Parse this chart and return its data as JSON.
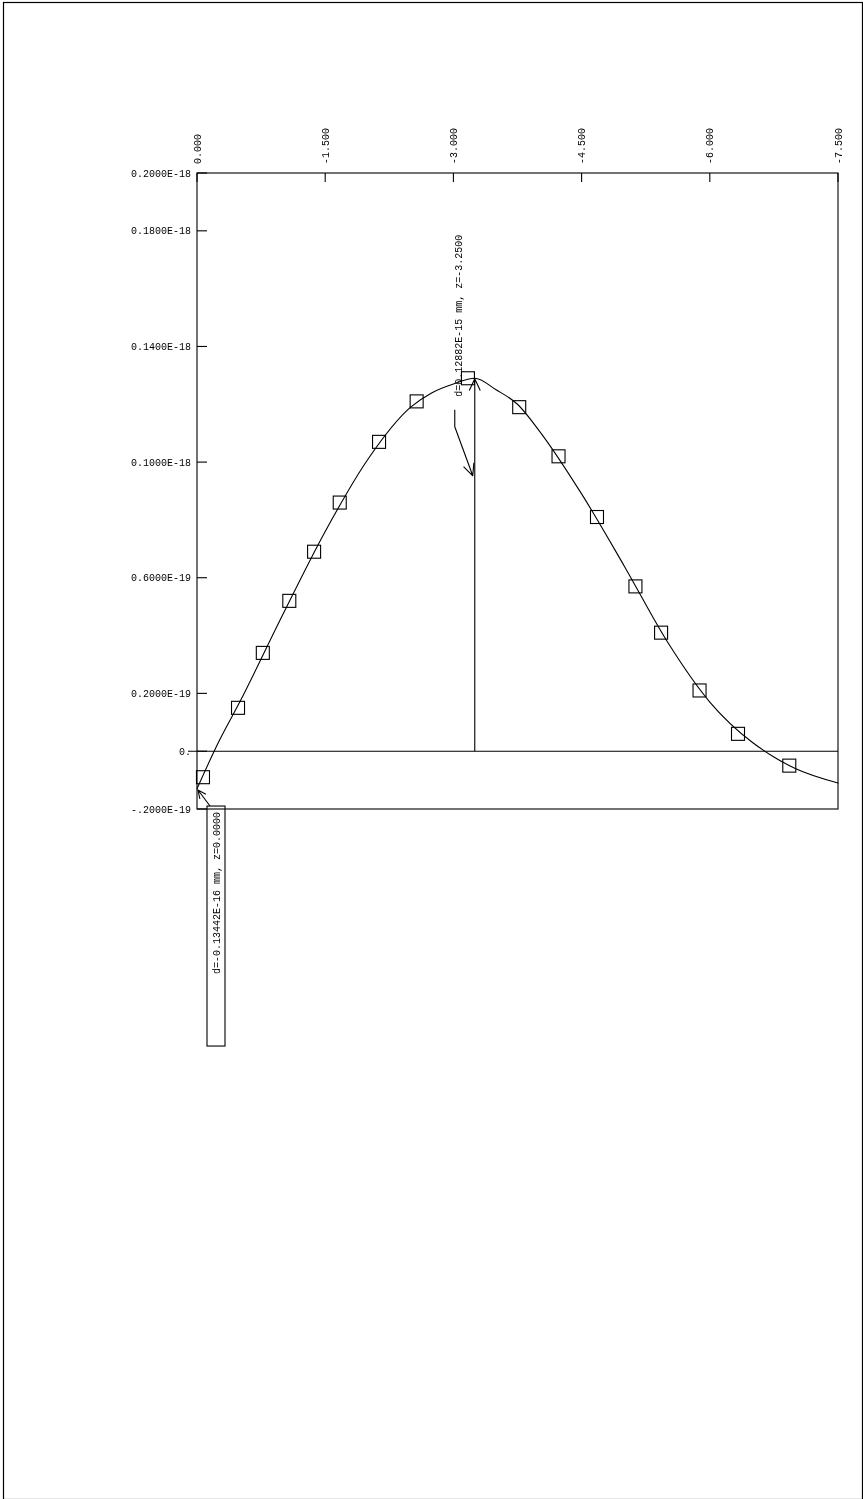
{
  "chart_data": {
    "type": "line",
    "xlim": [
      0,
      -7.5
    ],
    "ylim": [
      -2e-20,
      2e-19
    ],
    "xticks": [
      {
        "value": 0,
        "label": "0.000"
      },
      {
        "value": -1.5,
        "label": "-1.500"
      },
      {
        "value": -3,
        "label": "-3.000"
      },
      {
        "value": -4.5,
        "label": "-4.500"
      },
      {
        "value": -6,
        "label": "-6.000"
      },
      {
        "value": -7.5,
        "label": "-7.500"
      }
    ],
    "yticks": [
      {
        "value": 2e-19,
        "label": "0.2000E-18"
      },
      {
        "value": 1.8e-19,
        "label": "0.1800E-18"
      },
      {
        "value": 1.4e-19,
        "label": "0.1400E-18"
      },
      {
        "value": 1e-19,
        "label": "0.1000E-18"
      },
      {
        "value": 6e-20,
        "label": "0.6000E-19"
      },
      {
        "value": 2e-20,
        "label": "0.2000E-19"
      },
      {
        "value": 0,
        "label": "0."
      },
      {
        "value": -2e-20,
        "label": "-.2000E-19"
      }
    ],
    "series": [
      {
        "type": "line",
        "color": "#000000",
        "marker": "none",
        "x": [
          0,
          -0.25,
          -0.5,
          -1,
          -1.5,
          -2,
          -2.5,
          -2.75,
          -3,
          -3.25,
          -3.5,
          -3.75,
          -4,
          -4.5,
          -5,
          -5.5,
          -6,
          -6.5,
          -6.75,
          -7,
          -7.5
        ],
        "values": [
          -1.3e-20,
          3e-21,
          1.7e-20,
          4.7e-20,
          7.6e-20,
          1.01e-19,
          1.19e-19,
          1.24e-19,
          1.27e-19,
          1.29e-19,
          1.25e-19,
          1.2e-19,
          1.11e-19,
          8.9e-20,
          6.4e-20,
          3.8e-20,
          1.7e-20,
          3e-21,
          -2e-21,
          -6e-21,
          -1.1e-20
        ]
      },
      {
        "type": "scatter",
        "color": "#000000",
        "marker": "square",
        "x": [
          -0.07,
          -0.48,
          -0.77,
          -1.08,
          -1.37,
          -1.67,
          -2.13,
          -2.57,
          -3.17,
          -3.77,
          -4.23,
          -4.68,
          -5.13,
          -5.43,
          -5.88,
          -6.33,
          -6.93
        ],
        "values": [
          -9e-21,
          1.5e-20,
          3.4e-20,
          5.2e-20,
          6.9e-20,
          8.6e-20,
          1.07e-19,
          1.21e-19,
          1.29e-19,
          1.19e-19,
          1.02e-19,
          8.1e-20,
          5.7e-20,
          4.1e-20,
          2.1e-20,
          6e-21,
          -5e-21
        ]
      }
    ],
    "ref_lines": [
      {
        "axis": "y",
        "value": 0
      }
    ],
    "annotations": [
      {
        "text": "d=0.12882E-15 mm, z=-3.2500",
        "x": -3.25,
        "y": 1.2882e-19
      },
      {
        "text": "d=-0.13442E-16 mm, z=0.0000",
        "x": 0,
        "y": -1.3442e-20
      }
    ]
  }
}
